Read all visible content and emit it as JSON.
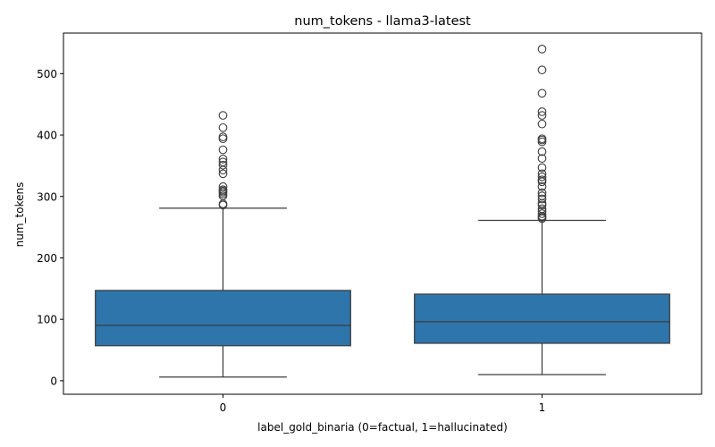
{
  "chart_data": {
    "type": "box",
    "title": "num_tokens - llama3-latest",
    "xlabel": "label_gold_binaria (0=factual, 1=hallucinated)",
    "ylabel": "num_tokens",
    "ylim": [
      -22,
      566
    ],
    "y_ticks": [
      0,
      100,
      200,
      300,
      400,
      500
    ],
    "grid": false,
    "box_color": "#2e75ab",
    "line_color": "#3d3d3d",
    "categories": [
      "0",
      "1"
    ],
    "boxes": [
      {
        "category": "0",
        "whisker_low": 6,
        "q1": 57,
        "median": 90,
        "q3": 147,
        "whisker_high": 281,
        "outliers": [
          286,
          288,
          301,
          304,
          307,
          309,
          311,
          316,
          337,
          343,
          351,
          356,
          361,
          376,
          394,
          397,
          412,
          432
        ]
      },
      {
        "category": "1",
        "whisker_low": 10,
        "q1": 61,
        "median": 96,
        "q3": 141,
        "whisker_high": 261,
        "outliers": [
          264,
          266,
          268,
          272,
          276,
          280,
          286,
          289,
          296,
          301,
          306,
          316,
          324,
          327,
          332,
          337,
          347,
          362,
          373,
          389,
          392,
          394,
          418,
          432,
          438,
          468,
          506,
          540
        ]
      }
    ]
  }
}
